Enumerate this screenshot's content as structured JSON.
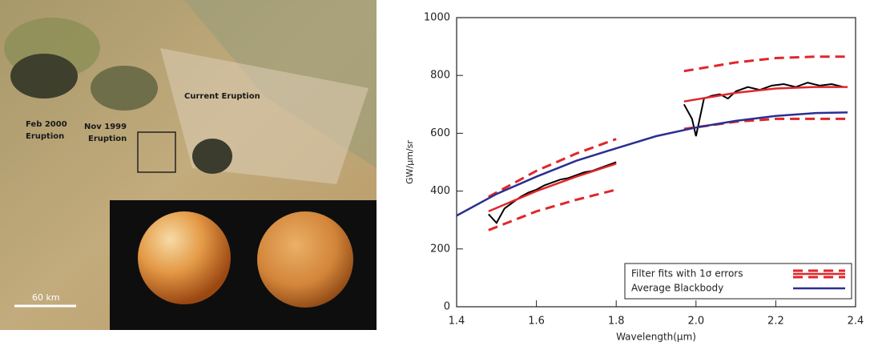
{
  "image": {
    "labels": [
      "Feb 2000",
      "Eruption",
      "Nov 1999",
      "Eruption",
      "Current Eruption",
      "60 km"
    ]
  },
  "chart_data": {
    "type": "line",
    "xlabel": "Wavelength(μm)",
    "ylabel": "GW/μm/sr",
    "xlim": [
      1.4,
      2.4
    ],
    "xticks": [
      1.4,
      1.6,
      1.8,
      {
        "value": 2,
        "label": "2.0"
      },
      2.2,
      2.4
    ],
    "ylim": [
      0,
      1000
    ],
    "yticks": [
      0,
      200,
      400,
      600,
      800,
      1000
    ],
    "legend": "lower right",
    "series": [
      {
        "color": "#000000",
        "x": [
          1.48,
          1.5,
          1.52,
          1.54,
          1.56,
          1.58,
          1.6,
          1.62,
          1.64,
          1.66,
          1.68,
          1.7,
          1.72,
          1.74,
          1.76,
          1.78,
          1.8,
          1.9,
          1.97,
          1.99,
          2.0,
          2.02,
          2.04,
          2.06,
          2.08,
          2.1,
          2.13,
          2.16,
          2.19,
          2.22,
          2.25,
          2.28,
          2.31,
          2.34,
          2.37
        ],
        "values": [
          320,
          290,
          340,
          360,
          380,
          395,
          405,
          420,
          430,
          440,
          445,
          455,
          465,
          470,
          480,
          490,
          500,
          null,
          700,
          650,
          590,
          720,
          730,
          735,
          720,
          745,
          760,
          750,
          765,
          770,
          760,
          775,
          765,
          770,
          760
        ]
      },
      {
        "name": "Filter fits with 1σ errors",
        "color": "#e0262b",
        "x": [
          1.48,
          1.6,
          1.7,
          1.8,
          1.9,
          1.97,
          2.1,
          2.2,
          2.3,
          2.38
        ],
        "values": [
          330,
          400,
          450,
          495,
          null,
          710,
          740,
          755,
          760,
          760
        ],
        "upper": [
          380,
          470,
          530,
          580,
          null,
          815,
          845,
          860,
          865,
          865
        ],
        "lower": [
          265,
          330,
          370,
          405,
          null,
          615,
          640,
          650,
          650,
          650
        ]
      },
      {
        "name": "Average Blackbody",
        "color": "#2b2f8f",
        "x": [
          1.4,
          1.5,
          1.6,
          1.7,
          1.8,
          1.9,
          2.0,
          2.1,
          2.2,
          2.3,
          2.38
        ],
        "values": [
          315,
          390,
          450,
          505,
          548,
          590,
          620,
          643,
          660,
          670,
          672
        ]
      }
    ]
  }
}
